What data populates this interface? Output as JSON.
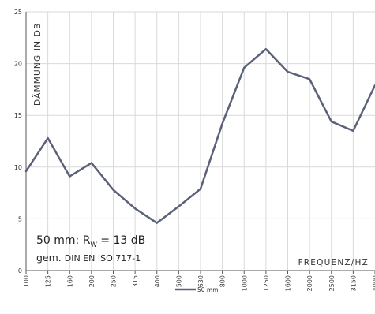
{
  "chart_data": {
    "type": "line",
    "ylabel": "DÄMMUNG IN DB",
    "xlabel": "FREQUENZ/HZ",
    "ylim": [
      0,
      25
    ],
    "yticks": [
      0,
      5,
      10,
      15,
      20,
      25
    ],
    "grid": true,
    "legend_position": "bottom-center",
    "categories": [
      "100",
      "125",
      "160",
      "200",
      "250",
      "315",
      "400",
      "500",
      "630",
      "800",
      "1000",
      "1250",
      "1600",
      "2000",
      "2500",
      "3150",
      "4000"
    ],
    "series": [
      {
        "name": "50 mm",
        "color": "#5a6178",
        "values": [
          9.6,
          12.8,
          9.1,
          10.4,
          7.8,
          6.0,
          4.6,
          6.2,
          7.9,
          14.2,
          19.6,
          21.4,
          19.2,
          18.5,
          14.4,
          13.5,
          17.9
        ]
      }
    ],
    "annotation": {
      "line1_prefix": "50 mm: R",
      "line1_sub": "W",
      "line1_suffix": " = 13 dB",
      "line2_prefix": "gem. ",
      "line2_norm": "DIN EN ISO 717-1"
    }
  }
}
